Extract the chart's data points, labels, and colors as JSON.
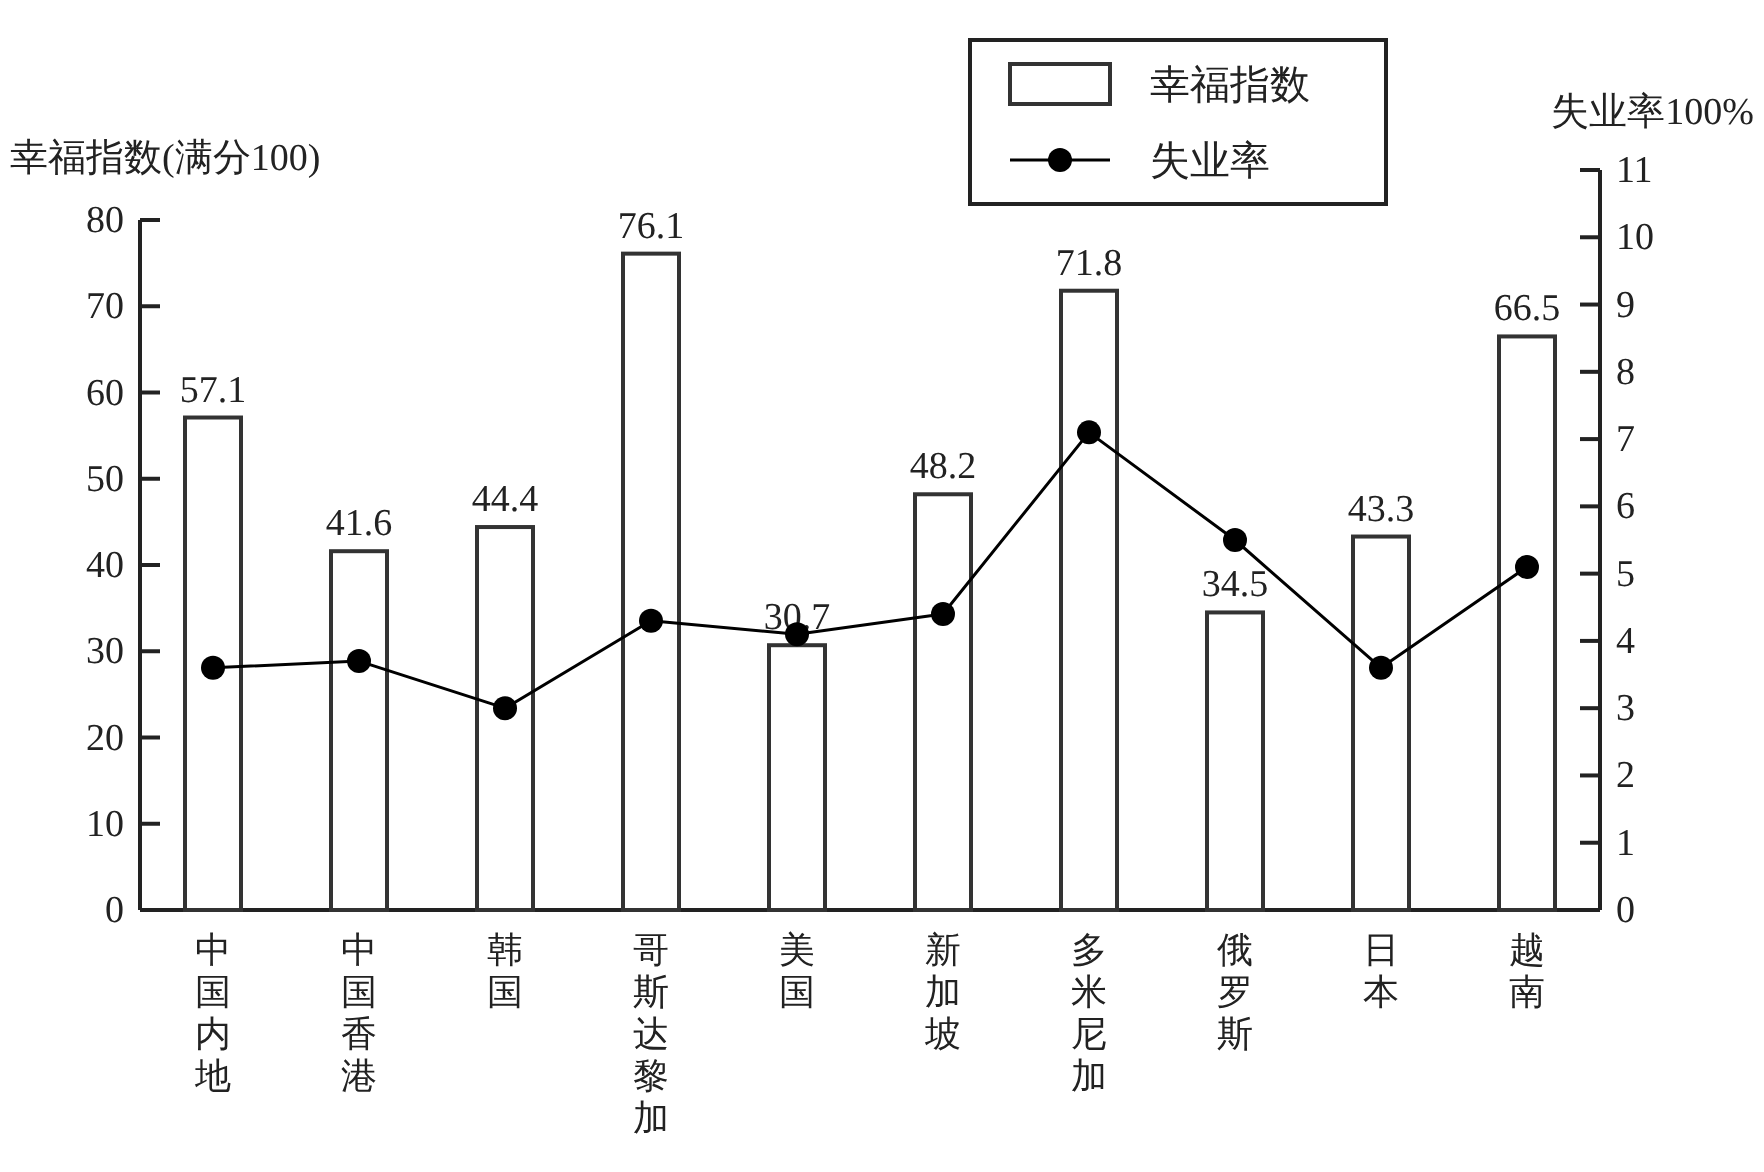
{
  "chart_data": {
    "type": "bar",
    "categories": [
      "中国内地",
      "中国香港",
      "韩国",
      "哥斯达黎加",
      "美国",
      "新加坡",
      "多米尼加",
      "俄罗斯",
      "日本",
      "越南"
    ],
    "series": [
      {
        "name": "幸福指数",
        "color": "#ffffff",
        "values": [
          57.1,
          41.6,
          44.4,
          76.1,
          30.7,
          48.2,
          71.8,
          34.5,
          43.3,
          66.5
        ],
        "value_labels": [
          "57.1",
          "41.6",
          "44.4",
          "76.1",
          "30.7",
          "48.2",
          "71.8",
          "34.5",
          "43.3",
          "66.5"
        ]
      },
      {
        "name": "失业率",
        "type": "line",
        "axis": "y2",
        "color": "#000000",
        "marker": "circle",
        "values": [
          3.6,
          3.7,
          3.0,
          4.3,
          4.1,
          4.4,
          7.1,
          5.5,
          3.6,
          5.1
        ]
      }
    ],
    "ylabel": "幸福指数(满分100)",
    "y2label": "失业率100%",
    "ylim": [
      0,
      80
    ],
    "yticks": [
      0,
      10,
      20,
      30,
      40,
      50,
      60,
      70,
      80
    ],
    "y2lim": [
      0,
      11
    ],
    "y2ticks": [
      0,
      1,
      2,
      3,
      4,
      5,
      6,
      7,
      8,
      9,
      10,
      11
    ],
    "legend": "top right",
    "grid": false
  }
}
